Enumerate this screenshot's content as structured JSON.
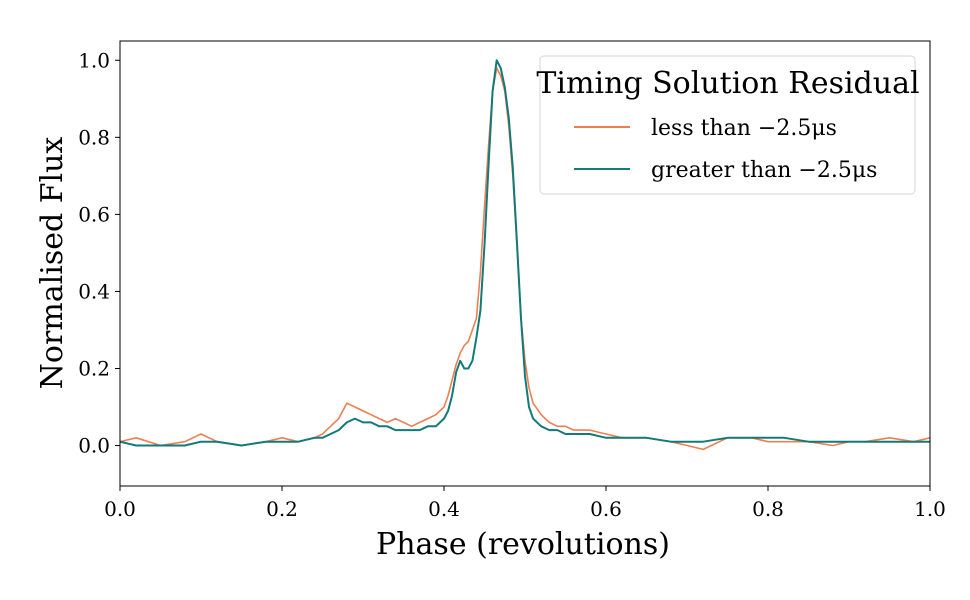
{
  "chart_data": {
    "type": "line",
    "title": "",
    "xlabel": "Phase (revolutions)",
    "ylabel": "Normalised Flux",
    "xlim": [
      0.0,
      1.0
    ],
    "ylim": [
      -0.105,
      1.05
    ],
    "xticks": [
      0.0,
      0.2,
      0.4,
      0.6,
      0.8,
      1.0
    ],
    "xtick_labels": [
      "0.0",
      "0.2",
      "0.4",
      "0.6",
      "0.8",
      "1.0"
    ],
    "yticks": [
      0.0,
      0.2,
      0.4,
      0.6,
      0.8,
      1.0
    ],
    "ytick_labels": [
      "0.0",
      "0.2",
      "0.4",
      "0.6",
      "0.8",
      "1.0"
    ],
    "grid": false,
    "legend": {
      "title": "Timing Solution Residual",
      "position": "top-right"
    },
    "series": [
      {
        "name": "less than −2.5μs",
        "color": "#ee7f52",
        "x": [
          0.0,
          0.02,
          0.05,
          0.08,
          0.1,
          0.12,
          0.15,
          0.18,
          0.2,
          0.22,
          0.24,
          0.25,
          0.26,
          0.27,
          0.28,
          0.29,
          0.3,
          0.31,
          0.32,
          0.33,
          0.34,
          0.35,
          0.36,
          0.37,
          0.38,
          0.39,
          0.4,
          0.405,
          0.41,
          0.415,
          0.42,
          0.425,
          0.43,
          0.435,
          0.44,
          0.445,
          0.45,
          0.455,
          0.46,
          0.465,
          0.47,
          0.475,
          0.48,
          0.485,
          0.49,
          0.495,
          0.5,
          0.505,
          0.51,
          0.52,
          0.53,
          0.54,
          0.55,
          0.56,
          0.58,
          0.6,
          0.62,
          0.65,
          0.68,
          0.7,
          0.72,
          0.75,
          0.78,
          0.8,
          0.82,
          0.85,
          0.88,
          0.9,
          0.92,
          0.95,
          0.98,
          1.0
        ],
        "y": [
          0.01,
          0.02,
          0.0,
          0.01,
          0.03,
          0.01,
          0.0,
          0.01,
          0.02,
          0.01,
          0.02,
          0.03,
          0.05,
          0.07,
          0.11,
          0.1,
          0.09,
          0.08,
          0.07,
          0.06,
          0.07,
          0.06,
          0.05,
          0.06,
          0.07,
          0.08,
          0.1,
          0.13,
          0.17,
          0.21,
          0.24,
          0.26,
          0.27,
          0.3,
          0.33,
          0.45,
          0.62,
          0.78,
          0.92,
          0.98,
          0.96,
          0.92,
          0.83,
          0.7,
          0.52,
          0.33,
          0.22,
          0.15,
          0.11,
          0.08,
          0.06,
          0.05,
          0.05,
          0.04,
          0.04,
          0.03,
          0.02,
          0.02,
          0.01,
          0.0,
          -0.01,
          0.02,
          0.02,
          0.01,
          0.01,
          0.01,
          0.0,
          0.01,
          0.01,
          0.02,
          0.01,
          0.02
        ]
      },
      {
        "name": "greater than −2.5μs",
        "color": "#127a78",
        "x": [
          0.0,
          0.02,
          0.05,
          0.08,
          0.1,
          0.12,
          0.15,
          0.18,
          0.2,
          0.22,
          0.24,
          0.25,
          0.26,
          0.27,
          0.28,
          0.29,
          0.3,
          0.31,
          0.32,
          0.33,
          0.34,
          0.35,
          0.36,
          0.37,
          0.38,
          0.39,
          0.4,
          0.405,
          0.41,
          0.415,
          0.42,
          0.425,
          0.43,
          0.435,
          0.44,
          0.445,
          0.45,
          0.455,
          0.46,
          0.465,
          0.47,
          0.475,
          0.48,
          0.485,
          0.49,
          0.495,
          0.5,
          0.505,
          0.51,
          0.52,
          0.53,
          0.54,
          0.55,
          0.56,
          0.58,
          0.6,
          0.62,
          0.65,
          0.68,
          0.7,
          0.72,
          0.75,
          0.78,
          0.8,
          0.82,
          0.85,
          0.88,
          0.9,
          0.92,
          0.95,
          0.98,
          1.0
        ],
        "y": [
          0.01,
          0.0,
          0.0,
          0.0,
          0.01,
          0.01,
          0.0,
          0.01,
          0.01,
          0.01,
          0.02,
          0.02,
          0.03,
          0.04,
          0.06,
          0.07,
          0.06,
          0.06,
          0.05,
          0.05,
          0.04,
          0.04,
          0.04,
          0.04,
          0.05,
          0.05,
          0.07,
          0.09,
          0.13,
          0.19,
          0.22,
          0.2,
          0.2,
          0.22,
          0.28,
          0.35,
          0.52,
          0.73,
          0.92,
          1.0,
          0.98,
          0.93,
          0.85,
          0.72,
          0.53,
          0.33,
          0.18,
          0.1,
          0.07,
          0.05,
          0.04,
          0.04,
          0.03,
          0.03,
          0.03,
          0.02,
          0.02,
          0.02,
          0.01,
          0.01,
          0.01,
          0.02,
          0.02,
          0.02,
          0.02,
          0.01,
          0.01,
          0.01,
          0.01,
          0.01,
          0.01,
          0.01
        ]
      }
    ]
  }
}
